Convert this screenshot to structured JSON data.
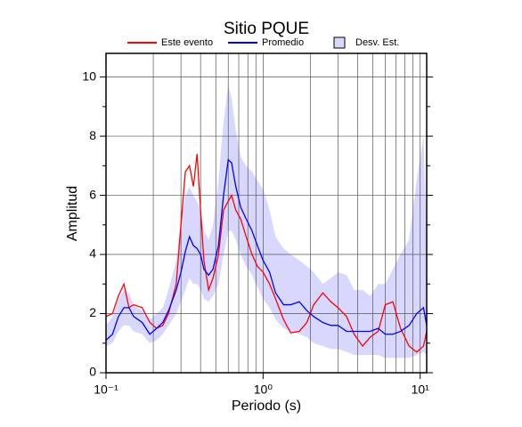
{
  "chart_data": {
    "type": "line",
    "title": "Sitio PQUE",
    "x_label": "Periodo (s)",
    "y_label": "Amplitud",
    "x": [
      0.1,
      0.11,
      0.12,
      0.13,
      0.14,
      0.15,
      0.17,
      0.19,
      0.21,
      0.23,
      0.25,
      0.28,
      0.3,
      0.32,
      0.34,
      0.36,
      0.38,
      0.4,
      0.42,
      0.45,
      0.48,
      0.52,
      0.56,
      0.6,
      0.63,
      0.67,
      0.72,
      0.78,
      0.85,
      0.92,
      1.0,
      1.1,
      1.2,
      1.35,
      1.5,
      1.7,
      1.9,
      2.1,
      2.4,
      2.7,
      3.0,
      3.4,
      3.8,
      4.3,
      4.8,
      5.4,
      6.0,
      6.7,
      7.5,
      8.5,
      9.5,
      10.5,
      11
    ],
    "series": [
      {
        "name": "Este evento",
        "color": "#ff0000",
        "values": [
          1.9,
          2.0,
          2.6,
          3.0,
          2.2,
          2.3,
          2.2,
          1.7,
          1.5,
          1.6,
          2.0,
          3.0,
          5.0,
          6.8,
          7.0,
          6.3,
          7.4,
          5.5,
          3.8,
          2.8,
          3.2,
          4.0,
          5.5,
          5.8,
          6.0,
          5.5,
          5.2,
          4.6,
          4.0,
          3.6,
          3.4,
          3.0,
          2.5,
          1.8,
          1.35,
          1.4,
          1.7,
          2.3,
          2.7,
          2.4,
          2.2,
          1.9,
          1.3,
          0.9,
          1.2,
          1.4,
          2.3,
          2.4,
          1.5,
          0.9,
          0.7,
          0.9,
          1.4
        ]
      },
      {
        "name": "Promedio",
        "color": "#0000ff",
        "values": [
          1.1,
          1.3,
          1.9,
          2.2,
          2.2,
          1.9,
          1.7,
          1.3,
          1.5,
          1.7,
          2.1,
          2.8,
          3.4,
          4.1,
          4.6,
          4.3,
          4.2,
          4.0,
          3.5,
          3.3,
          3.5,
          4.3,
          6.0,
          7.2,
          7.1,
          6.3,
          5.6,
          5.2,
          4.8,
          4.3,
          3.8,
          3.4,
          2.7,
          2.3,
          2.3,
          2.4,
          2.1,
          1.9,
          1.7,
          1.6,
          1.6,
          1.4,
          1.4,
          1.4,
          1.4,
          1.5,
          1.3,
          1.3,
          1.4,
          1.6,
          2.0,
          2.2,
          1.6
        ]
      }
    ],
    "band": {
      "name": "Desv. Est.",
      "color": "#d8d8ff",
      "upper": [
        1.6,
        1.9,
        2.5,
        2.8,
        2.7,
        2.3,
        2.1,
        1.8,
        2.0,
        2.2,
        2.8,
        3.8,
        5.2,
        6.0,
        6.3,
        6.0,
        5.8,
        5.5,
        4.8,
        4.5,
        5.0,
        6.5,
        8.5,
        9.7,
        9.3,
        8.2,
        7.3,
        7.0,
        6.8,
        6.5,
        6.2,
        5.5,
        4.6,
        4.2,
        4.0,
        3.8,
        3.6,
        3.4,
        3.0,
        3.2,
        3.4,
        3.3,
        2.8,
        2.8,
        2.6,
        3.0,
        3.0,
        3.5,
        4.0,
        4.5,
        6.5,
        8.0,
        4.5
      ],
      "lower": [
        0.9,
        1.0,
        1.4,
        1.6,
        1.6,
        1.4,
        1.3,
        1.0,
        1.1,
        1.3,
        1.6,
        2.0,
        2.4,
        2.8,
        3.2,
        3.0,
        3.0,
        2.8,
        2.5,
        2.4,
        2.6,
        3.0,
        4.0,
        4.8,
        4.8,
        4.5,
        4.0,
        3.6,
        3.3,
        2.9,
        2.5,
        2.2,
        1.8,
        1.5,
        1.4,
        1.3,
        1.2,
        1.0,
        0.9,
        0.8,
        0.8,
        0.7,
        0.6,
        0.6,
        0.6,
        0.6,
        0.5,
        0.5,
        0.5,
        0.5,
        0.6,
        0.7,
        0.6
      ]
    },
    "xscale": "log",
    "xlim": [
      0.1,
      11
    ],
    "ylim": [
      0,
      10.8
    ],
    "xticks": [
      {
        "value": 0.1,
        "label": "10⁻¹"
      },
      {
        "value": 1,
        "label": "10⁰"
      },
      {
        "value": 10,
        "label": "10¹"
      }
    ],
    "xgrid": [
      0.2,
      0.3,
      0.4,
      0.5,
      0.6,
      0.7,
      0.8,
      0.9,
      1,
      2,
      3,
      4,
      5,
      6,
      7,
      8,
      9,
      10
    ],
    "yticks": [
      0,
      2,
      4,
      6,
      8,
      10
    ],
    "yminor": [
      1,
      3,
      5,
      7,
      9
    ],
    "grid": true,
    "legend": "top"
  }
}
